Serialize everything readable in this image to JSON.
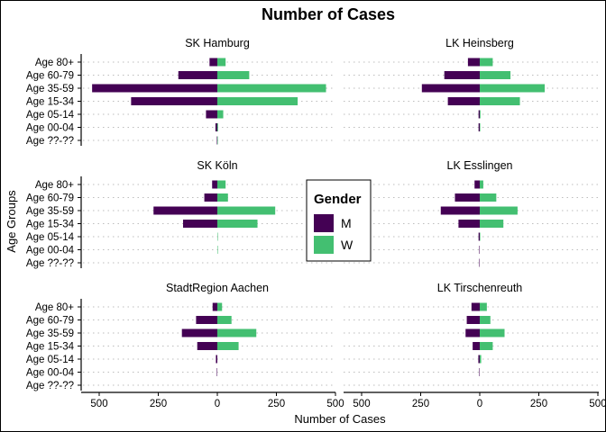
{
  "chart_data": {
    "type": "bar",
    "title": "Number of Cases",
    "xlabel": "Number of Cases",
    "ylabel": "Age Groups",
    "categories": [
      "Age 80+",
      "Age 60-79",
      "Age 35-59",
      "Age 15-34",
      "Age 05-14",
      "Age 00-04",
      "Age ??-??"
    ],
    "xticks": [
      500,
      250,
      0,
      250,
      500
    ],
    "xlim": [
      -600,
      600
    ],
    "grid": "dotted horizontal",
    "legend": {
      "title": "Gender",
      "position": "center",
      "entries": [
        {
          "label": "M",
          "color": "#440154"
        },
        {
          "label": "W",
          "color": "#43bf71"
        }
      ]
    },
    "colors": {
      "M": "#440154",
      "W": "#43bf71",
      "grid": "#bdbdbd"
    },
    "facets": [
      {
        "name": "SK Hamburg",
        "series": [
          {
            "name": "M",
            "values": [
              33,
              165,
              530,
              365,
              48,
              8,
              2
            ]
          },
          {
            "name": "W",
            "values": [
              35,
              135,
              460,
              340,
              25,
              3,
              2
            ]
          }
        ]
      },
      {
        "name": "LK Heinsberg",
        "series": [
          {
            "name": "M",
            "values": [
              50,
              150,
              245,
              135,
              5,
              5,
              0
            ]
          },
          {
            "name": "W",
            "values": [
              55,
              130,
              275,
              170,
              3,
              2,
              0
            ]
          }
        ]
      },
      {
        "name": "SK Köln",
        "series": [
          {
            "name": "M",
            "values": [
              22,
              55,
              270,
              145,
              0,
              0,
              0
            ]
          },
          {
            "name": "W",
            "values": [
              35,
              45,
              245,
              170,
              2,
              2,
              0
            ]
          }
        ]
      },
      {
        "name": "LK Esslingen",
        "series": [
          {
            "name": "M",
            "values": [
              22,
              105,
              165,
              90,
              5,
              2,
              2
            ]
          },
          {
            "name": "W",
            "values": [
              15,
              70,
              160,
              100,
              2,
              0,
              0
            ]
          }
        ]
      },
      {
        "name": "StadtRegion Aachen",
        "series": [
          {
            "name": "M",
            "values": [
              20,
              90,
              150,
              85,
              6,
              2,
              0
            ]
          },
          {
            "name": "W",
            "values": [
              20,
              60,
              165,
              90,
              0,
              0,
              0
            ]
          }
        ]
      },
      {
        "name": "LK Tirschenreuth",
        "series": [
          {
            "name": "M",
            "values": [
              35,
              55,
              60,
              30,
              6,
              2,
              0
            ]
          },
          {
            "name": "W",
            "values": [
              30,
              45,
              105,
              55,
              6,
              0,
              0
            ]
          }
        ]
      }
    ]
  }
}
